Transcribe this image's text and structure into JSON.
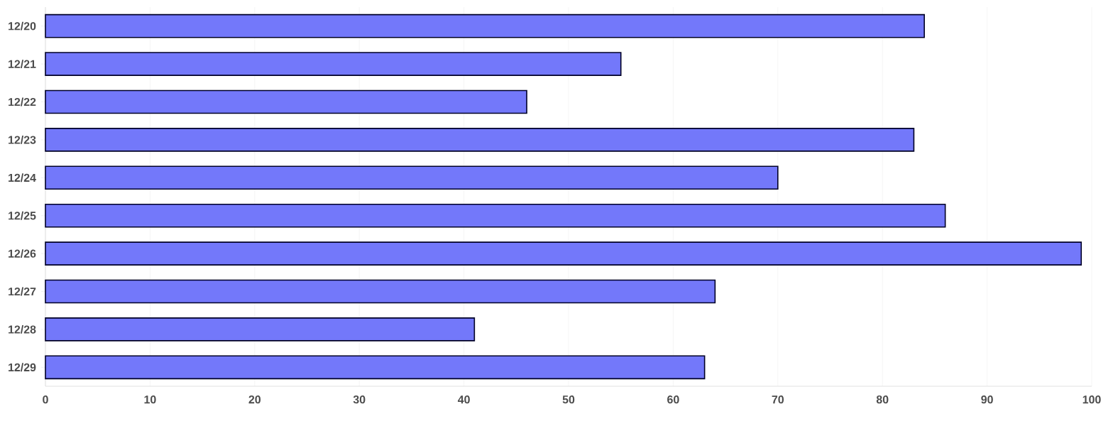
{
  "chart_data": {
    "type": "bar",
    "orientation": "horizontal",
    "categories": [
      "12/20",
      "12/21",
      "12/22",
      "12/23",
      "12/24",
      "12/25",
      "12/26",
      "12/27",
      "12/28",
      "12/29"
    ],
    "values": [
      84,
      55,
      46,
      83,
      70,
      86,
      99,
      64,
      41,
      63
    ],
    "color": "#7378fa",
    "xlim": [
      0,
      100
    ],
    "xticks": [
      0,
      10,
      20,
      30,
      40,
      50,
      60,
      70,
      80,
      90,
      100
    ],
    "grid": "x"
  }
}
